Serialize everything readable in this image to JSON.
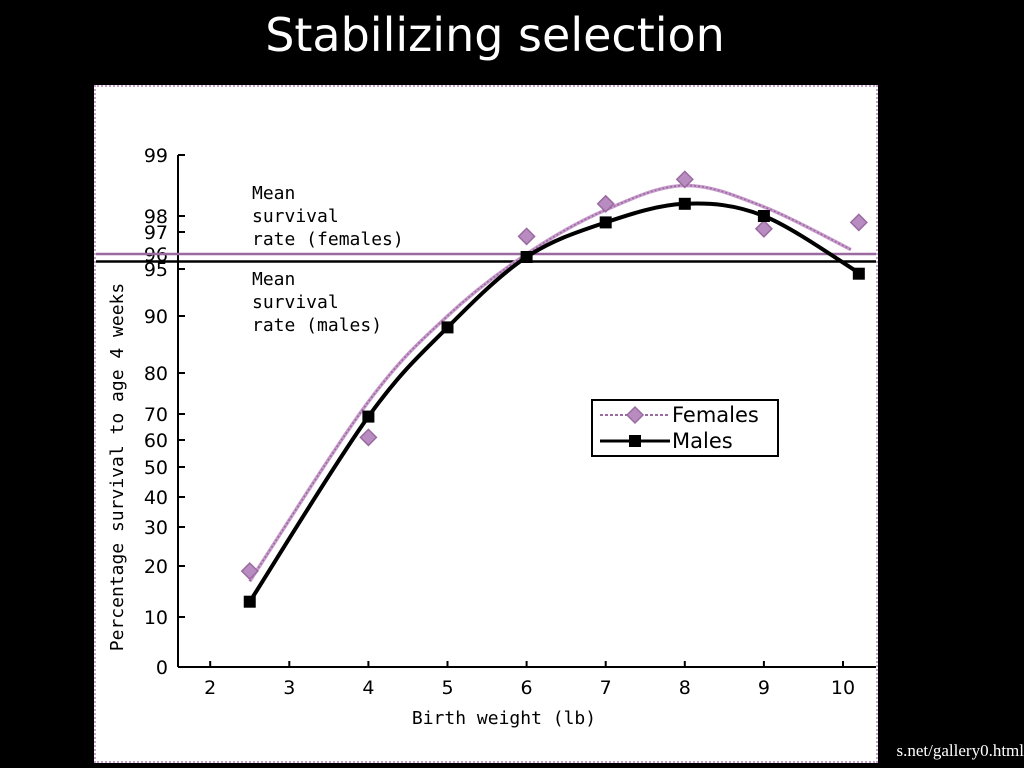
{
  "slide": {
    "title": "Stabilizing selection",
    "source_fragment": "s.net/gallery0.html"
  },
  "chart_data": {
    "type": "line",
    "title": "",
    "xlabel": "Birth weight (lb)",
    "ylabel": "Percentage survival to age 4 weeks",
    "x_ticks": [
      2,
      3,
      4,
      5,
      6,
      7,
      8,
      9,
      10
    ],
    "y_ticks": [
      "0",
      "10",
      "20",
      "30",
      "40",
      "50",
      "60",
      "70",
      "80",
      "90",
      "95",
      "96",
      "97",
      "98",
      "99"
    ],
    "y_scale": "probability",
    "xlim": [
      1.6,
      10.5
    ],
    "grid": false,
    "legend_position": "center-right",
    "series": [
      {
        "name": "Females",
        "color": "#9a6aa0",
        "marker": "diamond",
        "points": [
          [
            2.5,
            19
          ],
          [
            4,
            61
          ],
          [
            6,
            96.8
          ],
          [
            7,
            98.2
          ],
          [
            8,
            98.6
          ],
          [
            9,
            97.2
          ],
          [
            10.2,
            97.6
          ]
        ]
      },
      {
        "name": "Males",
        "color": "#000000",
        "marker": "square",
        "points": [
          [
            2.5,
            13
          ],
          [
            4,
            69
          ],
          [
            5,
            88
          ],
          [
            6,
            95.8
          ],
          [
            7,
            97.6
          ],
          [
            8,
            98.2
          ],
          [
            9,
            98
          ],
          [
            10.2,
            94.5
          ]
        ]
      }
    ],
    "reference_lines": [
      {
        "value": 96,
        "color": "#9a6aa0",
        "label": [
          "Mean",
          "survival",
          "rate (females)"
        ]
      },
      {
        "value": 95.5,
        "color": "#000000",
        "label": [
          "Mean",
          "survival",
          "rate (males)"
        ]
      }
    ]
  }
}
